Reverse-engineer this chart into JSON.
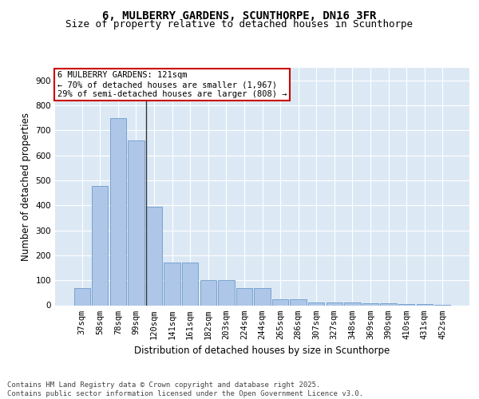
{
  "title_line1": "6, MULBERRY GARDENS, SCUNTHORPE, DN16 3FR",
  "title_line2": "Size of property relative to detached houses in Scunthorpe",
  "xlabel": "Distribution of detached houses by size in Scunthorpe",
  "ylabel": "Number of detached properties",
  "categories": [
    "37sqm",
    "58sqm",
    "78sqm",
    "99sqm",
    "120sqm",
    "141sqm",
    "161sqm",
    "182sqm",
    "203sqm",
    "224sqm",
    "244sqm",
    "265sqm",
    "286sqm",
    "307sqm",
    "327sqm",
    "348sqm",
    "369sqm",
    "390sqm",
    "410sqm",
    "431sqm",
    "452sqm"
  ],
  "values": [
    70,
    478,
    750,
    660,
    395,
    170,
    170,
    100,
    100,
    70,
    70,
    25,
    25,
    12,
    12,
    10,
    8,
    8,
    5,
    5,
    3
  ],
  "bar_color": "#aec6e8",
  "bar_edge_color": "#5a8fc2",
  "vline_x_index": 4,
  "vline_color": "#333333",
  "annotation_text": "6 MULBERRY GARDENS: 121sqm\n← 70% of detached houses are smaller (1,967)\n29% of semi-detached houses are larger (808) →",
  "annotation_box_color": "#ffffff",
  "annotation_box_edge_color": "#cc0000",
  "ylim": [
    0,
    950
  ],
  "yticks": [
    0,
    100,
    200,
    300,
    400,
    500,
    600,
    700,
    800,
    900
  ],
  "background_color": "#dce9f5",
  "footer_text": "Contains HM Land Registry data © Crown copyright and database right 2025.\nContains public sector information licensed under the Open Government Licence v3.0.",
  "title_fontsize": 10,
  "subtitle_fontsize": 9,
  "axis_fontsize": 8.5,
  "tick_fontsize": 7.5,
  "footer_fontsize": 6.5,
  "annotation_fontsize": 7.5
}
